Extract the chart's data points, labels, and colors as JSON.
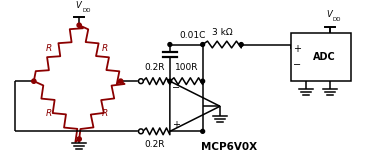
{
  "bg_color": "#ffffff",
  "line_color": "#000000",
  "dark_red": "#8B0000",
  "fig_width": 3.87,
  "fig_height": 1.68,
  "dpi": 100,
  "components": {
    "cap_label": "0.01C",
    "res_100r": "100R",
    "res_02r_top": "0.2R",
    "res_02r_bot": "0.2R",
    "res_3k": "3 kΩ",
    "adc_label": "ADC",
    "opamp_label": "MCP6V0X",
    "plus_sign": "+",
    "minus_sign": "−"
  }
}
